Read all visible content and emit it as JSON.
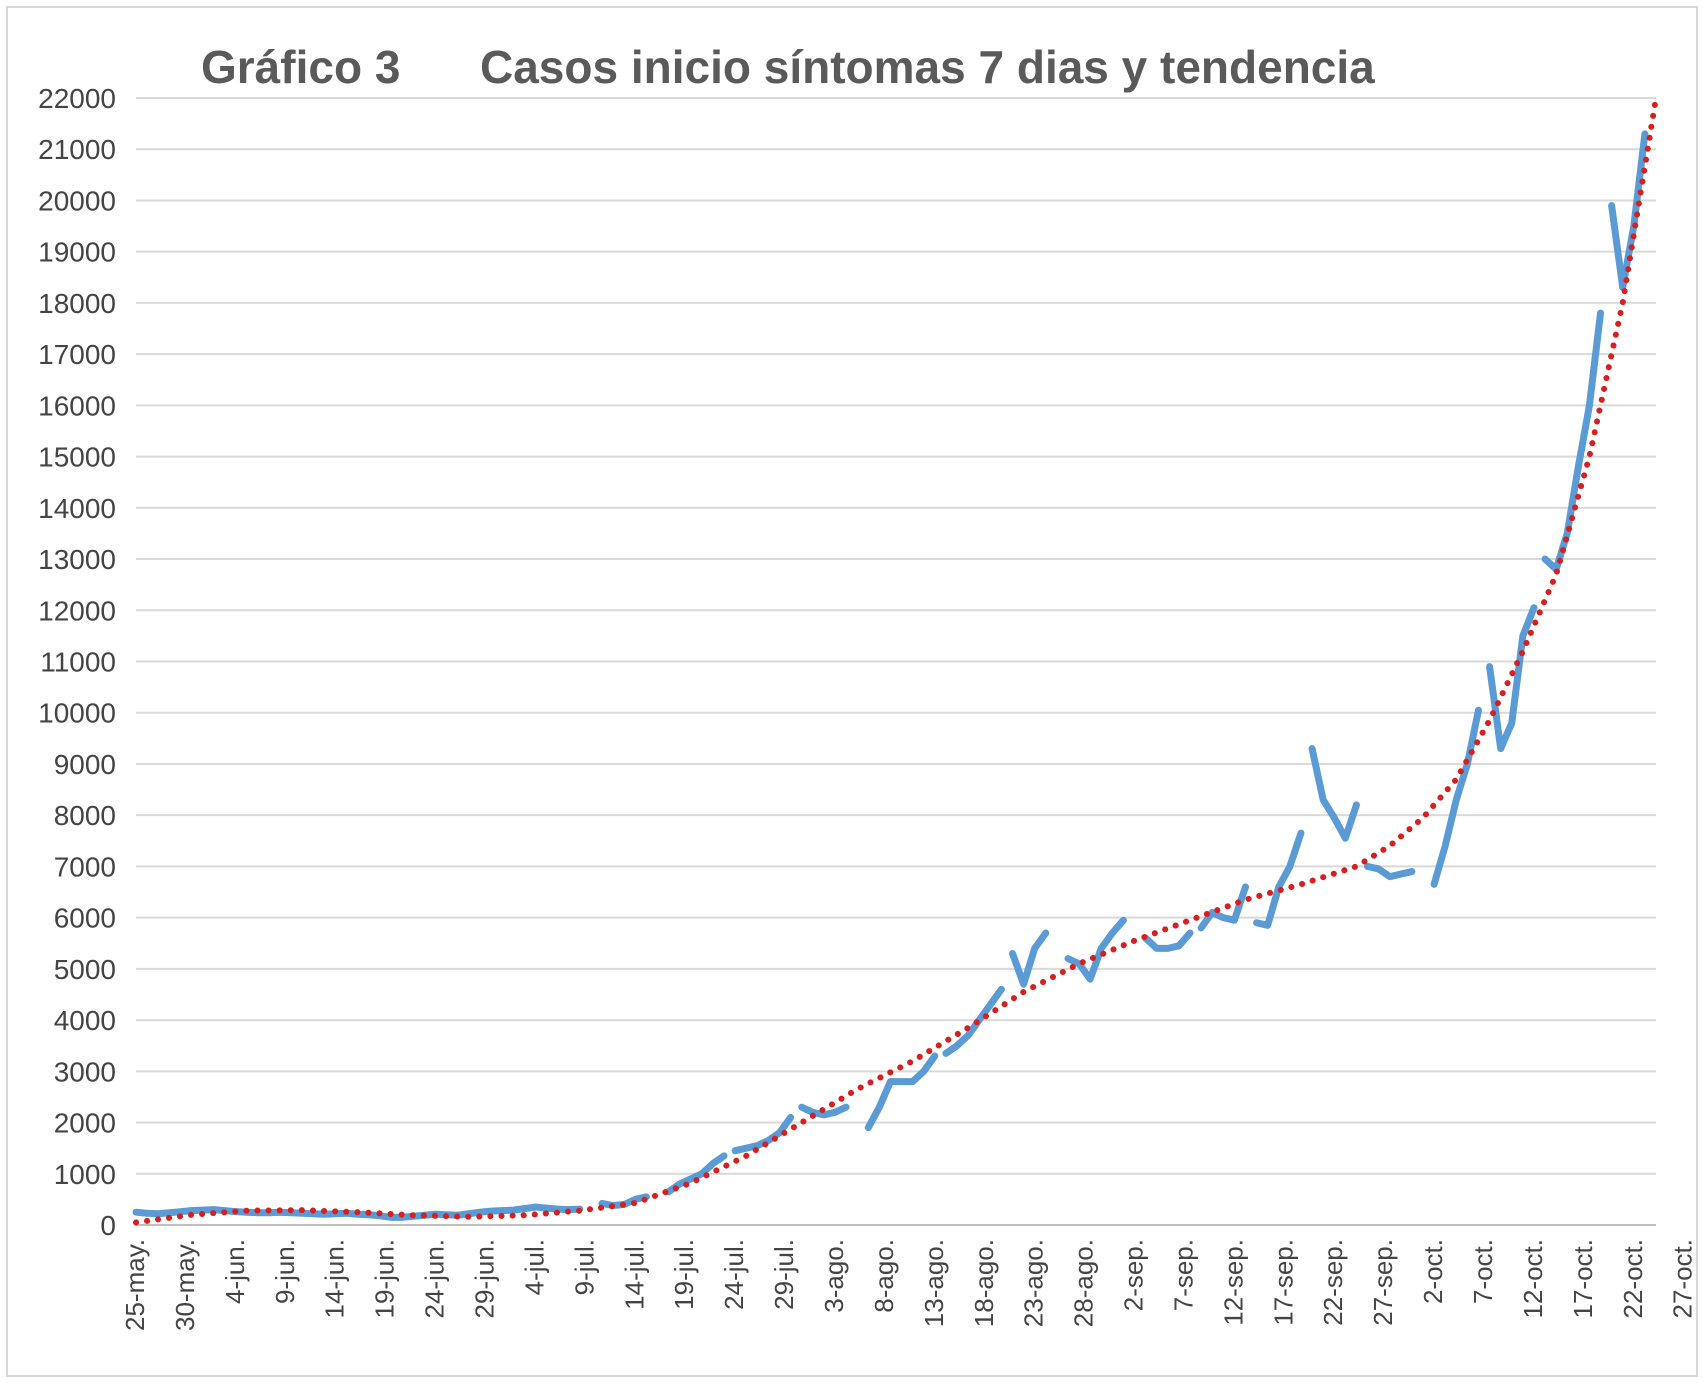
{
  "chart_data": {
    "type": "line",
    "title_left": "Gráfico 3",
    "title_right": "Casos inicio síntomas 7 dias y tendencia",
    "ylim": [
      0,
      22000
    ],
    "y_ticks": [
      0,
      1000,
      2000,
      3000,
      4000,
      5000,
      6000,
      7000,
      8000,
      9000,
      10000,
      11000,
      12000,
      13000,
      14000,
      15000,
      16000,
      17000,
      18000,
      19000,
      20000,
      21000,
      22000
    ],
    "x_tick_labels": [
      "25-may.",
      "30-may.",
      "4-jun.",
      "9-jun.",
      "14-jun.",
      "19-jun.",
      "24-jun.",
      "29-jun.",
      "4-jul.",
      "9-jul.",
      "14-jul.",
      "19-jul.",
      "24-jul.",
      "29-jul.",
      "3-ago.",
      "8-ago.",
      "13-ago.",
      "18-ago.",
      "23-ago.",
      "28-ago.",
      "2-sep.",
      "7-sep.",
      "12-sep.",
      "17-sep.",
      "22-sep.",
      "27-sep.",
      "2-oct.",
      "7-oct.",
      "12-oct.",
      "17-oct.",
      "22-oct.",
      "27-oct."
    ],
    "grid": true,
    "legend": "none",
    "series_color": "#5b9bd5",
    "trend_color": "#d62020",
    "series": [
      {
        "segments": [
          [
            [
              0,
              250
            ],
            [
              1,
              230
            ],
            [
              2,
              220
            ],
            [
              3,
              240
            ],
            [
              4,
              260
            ],
            [
              5,
              280
            ],
            [
              6,
              290
            ],
            [
              7,
              300
            ],
            [
              8,
              280
            ],
            [
              9,
              260
            ],
            [
              10,
              250
            ],
            [
              11,
              240
            ],
            [
              12,
              240
            ],
            [
              13,
              250
            ],
            [
              14,
              240
            ],
            [
              15,
              230
            ],
            [
              16,
              220
            ],
            [
              17,
              210
            ],
            [
              18,
              220
            ],
            [
              19,
              230
            ],
            [
              20,
              210
            ],
            [
              21,
              200
            ],
            [
              22,
              180
            ],
            [
              23,
              150
            ],
            [
              24,
              150
            ],
            [
              25,
              170
            ],
            [
              26,
              190
            ],
            [
              27,
              210
            ],
            [
              28,
              200
            ],
            [
              29,
              190
            ],
            [
              30,
              220
            ],
            [
              31,
              250
            ],
            [
              32,
              270
            ],
            [
              33,
              280
            ],
            [
              34,
              290
            ],
            [
              35,
              320
            ],
            [
              36,
              350
            ],
            [
              37,
              330
            ],
            [
              38,
              310
            ],
            [
              39,
              300
            ],
            [
              40,
              310
            ]
          ],
          [
            [
              42,
              420
            ],
            [
              43,
              380
            ],
            [
              44,
              400
            ],
            [
              45,
              500
            ],
            [
              46,
              550
            ]
          ],
          [
            [
              48,
              650
            ],
            [
              49,
              800
            ],
            [
              50,
              900
            ],
            [
              51,
              1000
            ],
            [
              52,
              1200
            ],
            [
              53,
              1350
            ]
          ],
          [
            [
              54,
              1450
            ],
            [
              55,
              1500
            ],
            [
              56,
              1550
            ],
            [
              57,
              1650
            ],
            [
              58,
              1800
            ],
            [
              59,
              2100
            ]
          ],
          [
            [
              60,
              2300
            ],
            [
              61,
              2200
            ],
            [
              62,
              2150
            ],
            [
              63,
              2200
            ],
            [
              64,
              2300
            ]
          ],
          [
            [
              66,
              1900
            ],
            [
              67,
              2300
            ],
            [
              68,
              2800
            ],
            [
              69,
              2800
            ],
            [
              70,
              2800
            ],
            [
              71,
              3000
            ],
            [
              72,
              3300
            ]
          ],
          [
            [
              73,
              3350
            ],
            [
              74,
              3500
            ],
            [
              75,
              3700
            ],
            [
              76,
              4000
            ],
            [
              77,
              4300
            ],
            [
              78,
              4600
            ]
          ],
          [
            [
              79,
              5300
            ],
            [
              80,
              4700
            ],
            [
              81,
              5400
            ],
            [
              82,
              5700
            ]
          ],
          [
            [
              84,
              5200
            ],
            [
              85,
              5100
            ],
            [
              86,
              4800
            ],
            [
              87,
              5400
            ],
            [
              88,
              5700
            ],
            [
              89,
              5950
            ]
          ],
          [
            [
              91,
              5600
            ],
            [
              92,
              5400
            ],
            [
              93,
              5400
            ],
            [
              94,
              5450
            ],
            [
              95,
              5700
            ]
          ],
          [
            [
              96,
              5800
            ],
            [
              97,
              6100
            ],
            [
              98,
              6000
            ],
            [
              99,
              5950
            ],
            [
              100,
              6600
            ]
          ],
          [
            [
              101,
              5900
            ],
            [
              102,
              5850
            ],
            [
              103,
              6600
            ],
            [
              104,
              7000
            ],
            [
              105,
              7650
            ]
          ],
          [
            [
              106,
              9300
            ],
            [
              107,
              8300
            ],
            [
              108,
              7950
            ],
            [
              109,
              7550
            ],
            [
              110,
              8200
            ]
          ],
          [
            [
              111,
              7000
            ],
            [
              112,
              6950
            ],
            [
              113,
              6800
            ],
            [
              114,
              6850
            ],
            [
              115,
              6900
            ]
          ],
          [
            [
              117,
              6650
            ],
            [
              118,
              7400
            ],
            [
              119,
              8300
            ],
            [
              120,
              9000
            ],
            [
              121,
              10050
            ]
          ],
          [
            [
              122,
              10900
            ],
            [
              123,
              9300
            ],
            [
              124,
              9800
            ],
            [
              125,
              11500
            ],
            [
              126,
              12050
            ]
          ],
          [
            [
              127,
              13000
            ],
            [
              128,
              12800
            ],
            [
              129,
              13500
            ],
            [
              130,
              14800
            ],
            [
              131,
              16000
            ],
            [
              132,
              17800
            ]
          ],
          [
            [
              133,
              19900
            ],
            [
              134,
              18300
            ],
            [
              135,
              19500
            ],
            [
              136,
              21300
            ]
          ]
        ]
      },
      {
        "name_trend": "tendencia",
        "points": [
          [
            0,
            50
          ],
          [
            5,
            200
          ],
          [
            10,
            280
          ],
          [
            15,
            290
          ],
          [
            20,
            250
          ],
          [
            25,
            190
          ],
          [
            30,
            160
          ],
          [
            35,
            190
          ],
          [
            40,
            280
          ],
          [
            45,
            430
          ],
          [
            50,
            820
          ],
          [
            55,
            1350
          ],
          [
            60,
            2000
          ],
          [
            65,
            2650
          ],
          [
            70,
            3200
          ],
          [
            75,
            3850
          ],
          [
            80,
            4550
          ],
          [
            85,
            5100
          ],
          [
            90,
            5550
          ],
          [
            95,
            5950
          ],
          [
            100,
            6350
          ],
          [
            105,
            6650
          ],
          [
            110,
            7000
          ],
          [
            113,
            7400
          ],
          [
            116,
            7950
          ],
          [
            119,
            8700
          ],
          [
            122,
            9850
          ],
          [
            125,
            11200
          ],
          [
            128,
            12700
          ],
          [
            131,
            15000
          ],
          [
            134,
            18000
          ],
          [
            137,
            22000
          ]
        ]
      }
    ],
    "x_max_index": 137
  }
}
